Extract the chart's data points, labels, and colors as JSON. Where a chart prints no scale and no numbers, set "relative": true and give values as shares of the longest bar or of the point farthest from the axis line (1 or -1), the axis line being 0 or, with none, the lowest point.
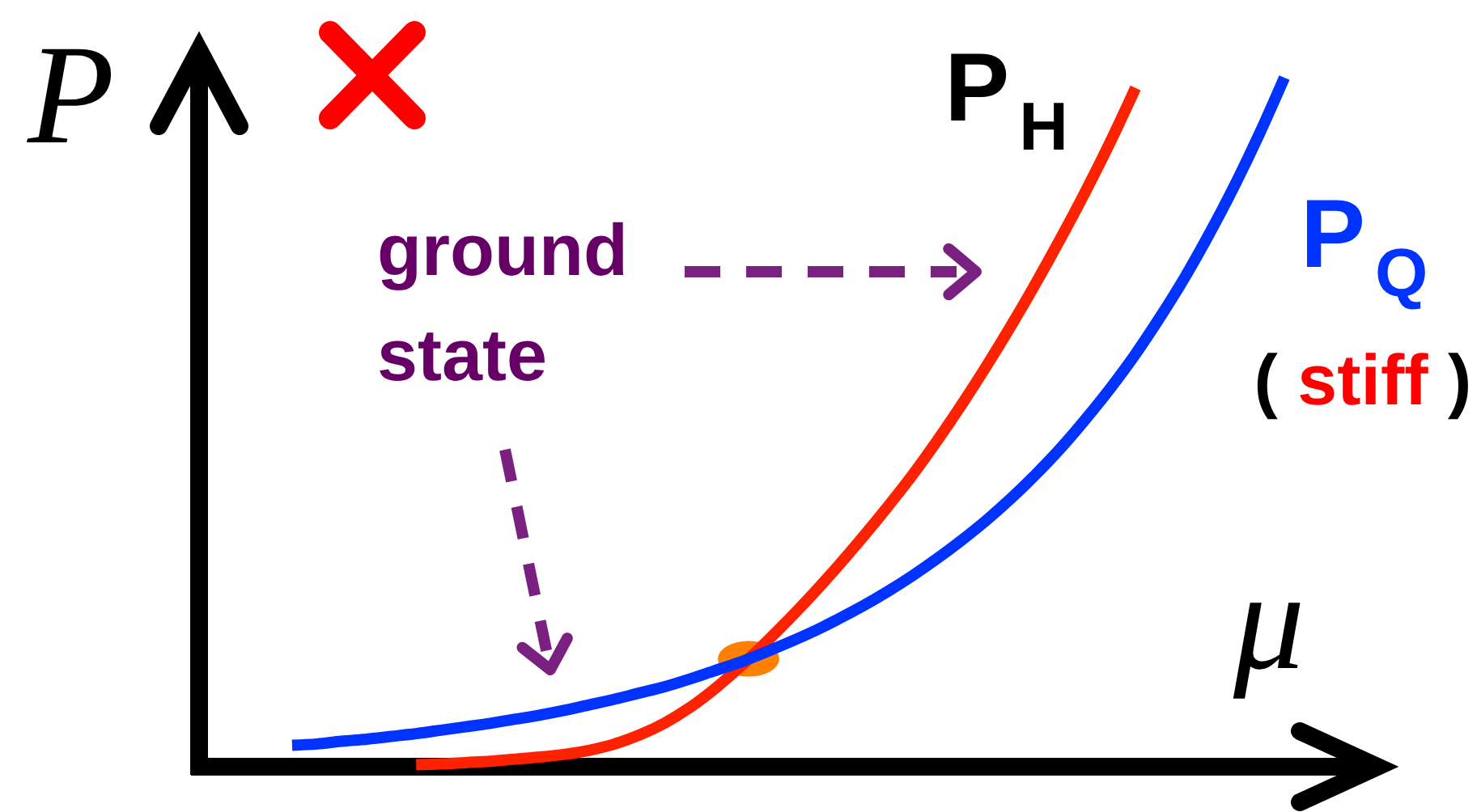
{
  "chart_data": {
    "type": "line",
    "relative": true,
    "xlabel": "μ",
    "ylabel": "P",
    "categories": [
      null,
      null,
      null,
      null,
      null,
      null,
      null,
      null,
      null,
      null,
      null,
      null,
      null,
      null,
      null,
      null,
      null,
      null,
      null,
      null,
      null,
      null,
      null,
      null,
      null,
      null,
      null,
      null,
      null,
      null,
      null,
      null,
      null,
      null,
      null,
      null,
      null,
      null,
      null,
      null,
      null
    ],
    "series": [
      {
        "name": "P$_{H}$",
        "color": "#ff2200",
        "values": [
          null,
          null,
          null,
          null,
          null,
          0.003,
          0.004,
          0.006,
          0.008,
          0.011,
          0.014,
          0.018,
          0.024,
          0.033,
          0.046,
          0.063,
          0.085,
          0.112,
          0.143,
          0.177,
          0.213,
          0.251,
          0.291,
          0.333,
          0.377,
          0.423,
          0.473,
          0.526,
          0.582,
          0.641,
          0.703,
          0.768,
          0.836,
          0.908,
          0.985,
          null,
          null,
          null,
          null,
          null,
          null
        ]
      },
      {
        "name": "P$_{Q}$",
        "color": "#0033ff",
        "values": [
          0.031,
          0.033,
          0.037,
          0.04,
          0.044,
          0.048,
          0.053,
          0.058,
          0.063,
          0.069,
          0.075,
          0.082,
          0.09,
          0.098,
          0.107,
          0.116,
          0.127,
          0.139,
          0.151,
          0.165,
          0.18,
          0.196,
          0.214,
          0.233,
          0.254,
          0.277,
          0.302,
          0.329,
          0.358,
          0.39,
          0.425,
          0.463,
          0.505,
          0.55,
          0.599,
          0.653,
          0.711,
          0.775,
          0.844,
          0.919,
          1
        ]
      }
    ],
    "annotations": [
      "ground state",
      "( stiff )"
    ]
  }
}
